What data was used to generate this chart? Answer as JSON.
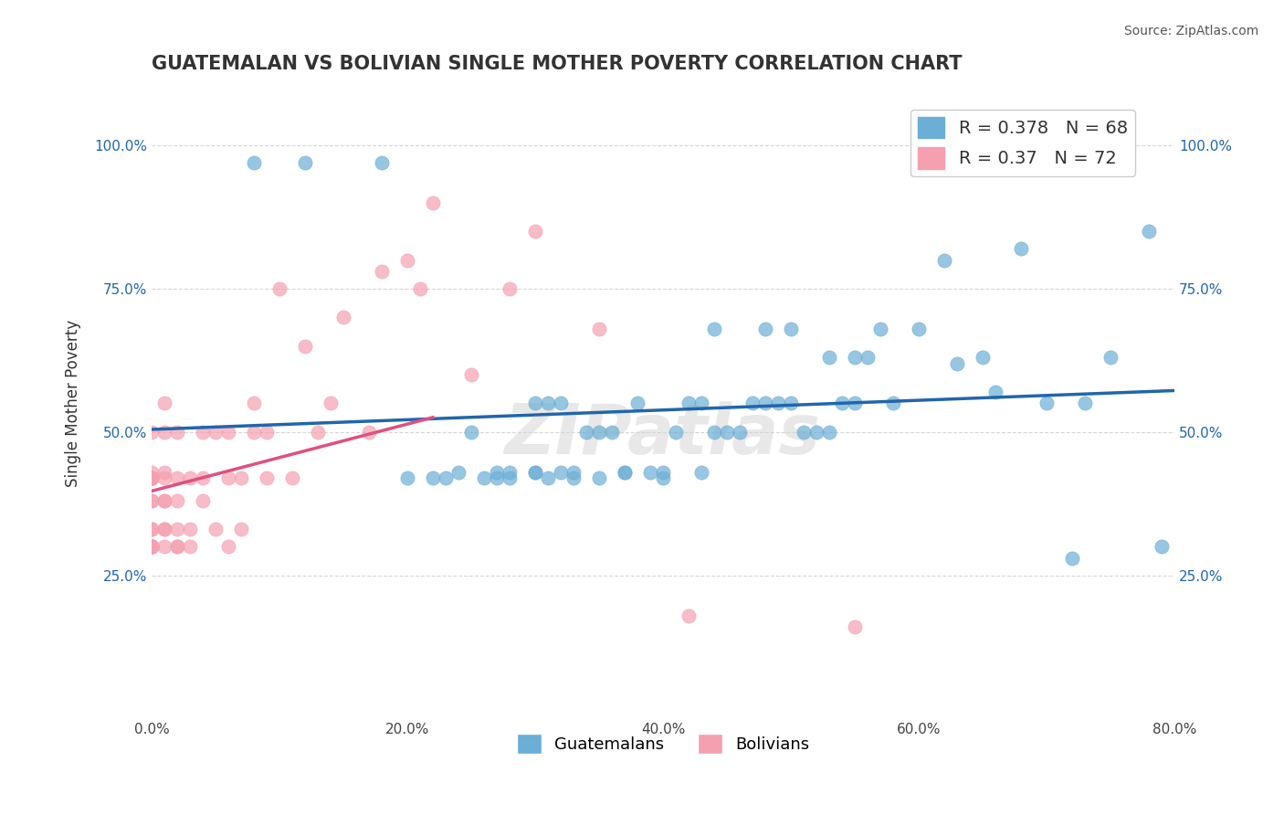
{
  "title": "GUATEMALAN VS BOLIVIAN SINGLE MOTHER POVERTY CORRELATION CHART",
  "source": "Source: ZipAtlas.com",
  "xlabel": "",
  "ylabel": "Single Mother Poverty",
  "legend_labels": [
    "Guatemalans",
    "Bolivians"
  ],
  "blue_R": 0.378,
  "blue_N": 68,
  "pink_R": 0.37,
  "pink_N": 72,
  "blue_color": "#6baed6",
  "pink_color": "#f4a0b0",
  "blue_line_color": "#2166ac",
  "pink_line_color": "#e05080",
  "background_color": "#ffffff",
  "watermark": "ZIPatlas",
  "xlim": [
    0.0,
    0.8
  ],
  "ylim": [
    0.0,
    1.1
  ],
  "xticks": [
    0.0,
    0.2,
    0.4,
    0.6,
    0.8
  ],
  "yticks": [
    0.25,
    0.5,
    0.75,
    1.0
  ],
  "blue_x": [
    0.08,
    0.12,
    0.18,
    0.2,
    0.22,
    0.23,
    0.24,
    0.25,
    0.26,
    0.27,
    0.27,
    0.28,
    0.28,
    0.3,
    0.3,
    0.3,
    0.31,
    0.31,
    0.32,
    0.32,
    0.33,
    0.33,
    0.34,
    0.35,
    0.35,
    0.36,
    0.37,
    0.37,
    0.38,
    0.39,
    0.4,
    0.4,
    0.41,
    0.42,
    0.43,
    0.43,
    0.44,
    0.44,
    0.45,
    0.46,
    0.47,
    0.48,
    0.48,
    0.49,
    0.5,
    0.5,
    0.51,
    0.52,
    0.53,
    0.53,
    0.54,
    0.55,
    0.55,
    0.56,
    0.57,
    0.58,
    0.6,
    0.62,
    0.63,
    0.65,
    0.66,
    0.68,
    0.7,
    0.72,
    0.73,
    0.75,
    0.78,
    0.79
  ],
  "blue_y": [
    0.97,
    0.97,
    0.97,
    0.42,
    0.42,
    0.42,
    0.43,
    0.5,
    0.42,
    0.42,
    0.43,
    0.43,
    0.42,
    0.43,
    0.43,
    0.55,
    0.55,
    0.42,
    0.43,
    0.55,
    0.43,
    0.42,
    0.5,
    0.5,
    0.42,
    0.5,
    0.43,
    0.43,
    0.55,
    0.43,
    0.43,
    0.42,
    0.5,
    0.55,
    0.55,
    0.43,
    0.68,
    0.5,
    0.5,
    0.5,
    0.55,
    0.55,
    0.68,
    0.55,
    0.55,
    0.68,
    0.5,
    0.5,
    0.63,
    0.5,
    0.55,
    0.55,
    0.63,
    0.63,
    0.68,
    0.55,
    0.68,
    0.8,
    0.62,
    0.63,
    0.57,
    0.82,
    0.55,
    0.28,
    0.55,
    0.63,
    0.85,
    0.3
  ],
  "pink_x": [
    0.0,
    0.0,
    0.0,
    0.0,
    0.0,
    0.0,
    0.0,
    0.0,
    0.0,
    0.0,
    0.0,
    0.0,
    0.0,
    0.0,
    0.0,
    0.0,
    0.0,
    0.0,
    0.0,
    0.0,
    0.0,
    0.0,
    0.0,
    0.01,
    0.01,
    0.01,
    0.01,
    0.01,
    0.01,
    0.01,
    0.01,
    0.01,
    0.02,
    0.02,
    0.02,
    0.02,
    0.02,
    0.02,
    0.03,
    0.03,
    0.03,
    0.04,
    0.04,
    0.04,
    0.05,
    0.05,
    0.06,
    0.06,
    0.06,
    0.07,
    0.07,
    0.08,
    0.08,
    0.09,
    0.09,
    0.1,
    0.11,
    0.12,
    0.13,
    0.14,
    0.15,
    0.17,
    0.18,
    0.2,
    0.21,
    0.22,
    0.25,
    0.28,
    0.3,
    0.35,
    0.42,
    0.55
  ],
  "pink_y": [
    0.3,
    0.3,
    0.3,
    0.3,
    0.3,
    0.3,
    0.3,
    0.3,
    0.3,
    0.3,
    0.3,
    0.3,
    0.33,
    0.33,
    0.38,
    0.38,
    0.42,
    0.42,
    0.42,
    0.42,
    0.42,
    0.43,
    0.5,
    0.3,
    0.33,
    0.33,
    0.38,
    0.38,
    0.42,
    0.43,
    0.5,
    0.55,
    0.3,
    0.3,
    0.33,
    0.38,
    0.42,
    0.5,
    0.3,
    0.33,
    0.42,
    0.38,
    0.42,
    0.5,
    0.33,
    0.5,
    0.3,
    0.42,
    0.5,
    0.33,
    0.42,
    0.5,
    0.55,
    0.42,
    0.5,
    0.75,
    0.42,
    0.65,
    0.5,
    0.55,
    0.7,
    0.5,
    0.78,
    0.8,
    0.75,
    0.9,
    0.6,
    0.75,
    0.85,
    0.68,
    0.18,
    0.16
  ]
}
